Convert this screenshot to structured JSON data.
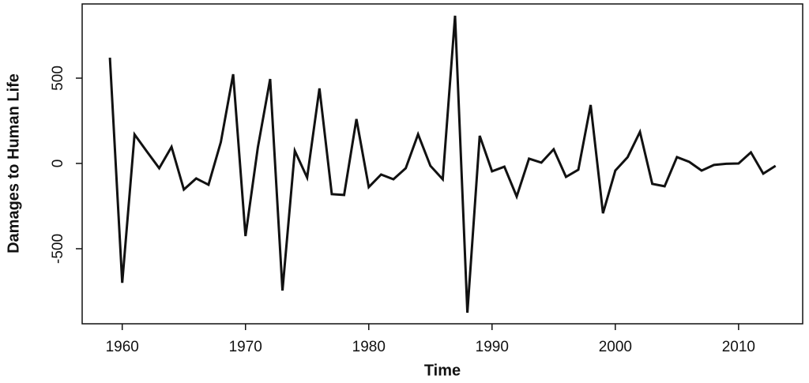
{
  "chart_data": {
    "type": "line",
    "x_label": "Time",
    "y_label": "Damages to Human Life",
    "x": [
      1959,
      1960,
      1961,
      1962,
      1963,
      1964,
      1965,
      1966,
      1967,
      1968,
      1969,
      1970,
      1971,
      1972,
      1973,
      1974,
      1975,
      1976,
      1977,
      1978,
      1979,
      1980,
      1981,
      1982,
      1983,
      1984,
      1985,
      1986,
      1987,
      1988,
      1989,
      1990,
      1991,
      1992,
      1993,
      1994,
      1995,
      1996,
      1997,
      1998,
      1999,
      2000,
      2001,
      2002,
      2003,
      2004,
      2005,
      2006,
      2007,
      2008,
      2009,
      2010,
      2011,
      2012,
      2013
    ],
    "series": [
      {
        "color": "#111111",
        "values": [
          620,
          -700,
          170,
          70,
          -28,
          97,
          -153,
          -88,
          -125,
          125,
          523,
          -426,
          93,
          495,
          -745,
          74,
          -83,
          440,
          -180,
          -185,
          260,
          -139,
          -65,
          -93,
          -28,
          171,
          -14,
          -93,
          866,
          -875,
          162,
          -46,
          -19,
          -194,
          28,
          5,
          83,
          -79,
          -37,
          343,
          -292,
          -42,
          37,
          185,
          -120,
          -134,
          37,
          9,
          -42,
          -9,
          -2,
          0,
          65,
          -60,
          -14
        ]
      }
    ],
    "xlim": [
      1956.75,
      2015.2
    ],
    "ylim": [
      -940,
      935
    ],
    "xticks": [
      1960,
      1970,
      1980,
      1990,
      2000,
      2010
    ],
    "yticks": [
      -500,
      0,
      500
    ]
  }
}
